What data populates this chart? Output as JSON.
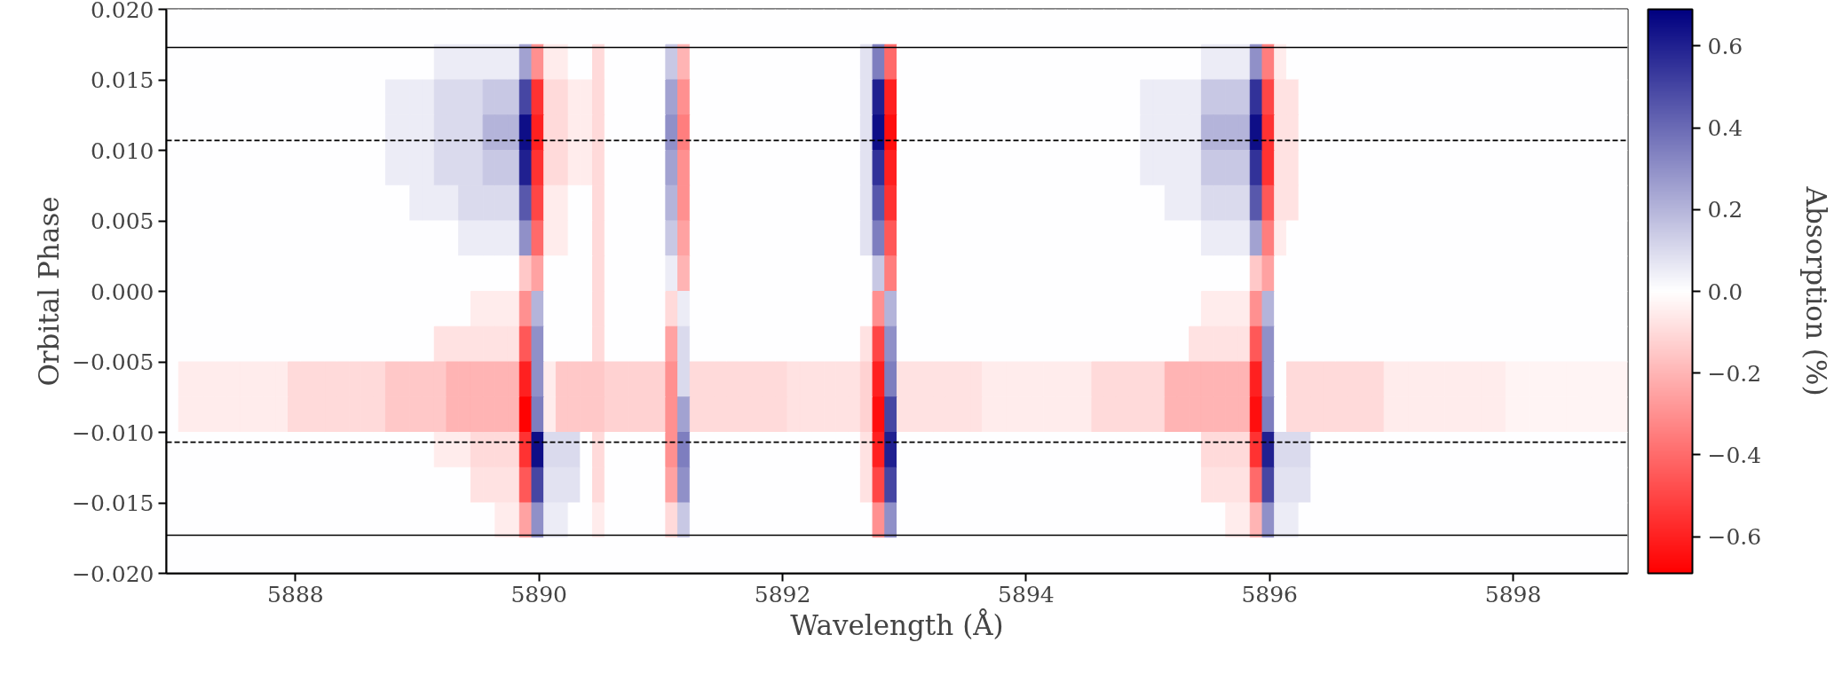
{
  "chart_data": {
    "type": "heatmap",
    "xlabel": "Wavelength (Å)",
    "ylabel": "Orbital Phase",
    "clabel": "Absorption (%)",
    "xlim": [
      5886.94,
      5898.94
    ],
    "ylim": [
      -0.02,
      0.02
    ],
    "xticks": [
      5888,
      5890,
      5892,
      5894,
      5896,
      5898
    ],
    "yticks": [
      {
        "value": -0.02,
        "label": "−0.020"
      },
      {
        "value": -0.015,
        "label": "−0.015"
      },
      {
        "value": -0.01,
        "label": "−0.010"
      },
      {
        "value": -0.005,
        "label": "−0.005"
      },
      {
        "value": 0,
        "label": "0.000"
      },
      {
        "value": 0.005,
        "label": "0.005"
      },
      {
        "value": 0.01,
        "label": "0.010"
      },
      {
        "value": 0.015,
        "label": "0.015"
      },
      {
        "value": 0.02,
        "label": "0.020"
      }
    ],
    "clim": [
      -0.69,
      0.69
    ],
    "cticks": [
      {
        "value": -0.6,
        "label": "−0.6"
      },
      {
        "value": -0.4,
        "label": "−0.4"
      },
      {
        "value": -0.2,
        "label": "−0.2"
      },
      {
        "value": 0,
        "label": "0.0"
      },
      0.2,
      0.4,
      0.6
    ],
    "colors": [
      "#ff0000",
      "#ffffff",
      "#000080"
    ],
    "ref_lines": [
      {
        "axis": "y",
        "value": 0.0173,
        "color": "#000000",
        "line_style": "solid"
      },
      {
        "axis": "y",
        "value": 0.0107,
        "color": "#000000",
        "line_style": "dashed"
      },
      {
        "axis": "y",
        "value": -0.0107,
        "color": "#000000",
        "line_style": "dashed"
      },
      {
        "axis": "y",
        "value": -0.0173,
        "color": "#000000",
        "line_style": "solid"
      }
    ],
    "cells": [
      [
        0,
        0,
        0,
        0,
        0,
        0,
        0,
        0,
        0,
        0,
        0,
        0,
        0,
        0,
        0,
        0,
        0,
        0,
        0,
        0,
        0,
        0,
        0,
        0,
        0,
        0,
        0,
        0,
        0,
        0,
        0,
        0,
        0,
        0,
        0,
        0,
        0,
        0,
        0,
        0,
        0,
        0,
        0,
        0,
        0,
        0,
        0,
        0,
        0,
        0,
        0,
        0,
        0,
        0,
        0,
        0,
        0,
        0,
        0,
        0,
        0,
        0,
        0,
        0,
        0,
        0,
        0,
        0,
        0,
        0,
        0,
        0,
        0,
        0,
        0,
        0,
        0,
        0,
        0,
        0,
        0,
        0,
        0,
        0,
        0,
        0,
        0,
        0,
        0,
        0,
        0,
        0,
        0,
        0,
        0,
        0,
        0,
        0,
        0,
        0,
        0,
        0,
        0,
        0,
        0,
        0,
        0,
        0,
        0,
        0,
        0,
        0,
        0,
        0,
        0,
        0,
        0,
        0,
        0,
        0
      ],
      [
        0,
        0,
        0,
        0,
        0,
        0,
        0,
        0,
        0,
        0,
        0,
        0,
        0,
        0,
        0,
        0,
        0,
        0,
        0,
        0,
        0,
        0,
        0.05,
        0.05,
        0.05,
        0.05,
        0.05,
        0.05,
        0.05,
        0.25,
        -0.3,
        -0.05,
        -0.05,
        0,
        0,
        -0.1,
        0,
        0,
        0,
        0,
        0,
        0.15,
        -0.2,
        0,
        0,
        0,
        0,
        0,
        0,
        0,
        0,
        0,
        0,
        0,
        0,
        0,
        0,
        0.08,
        0.35,
        -0.4,
        0,
        0,
        0,
        0,
        0,
        0,
        0,
        0,
        0,
        0,
        0,
        0,
        0,
        0,
        0,
        0,
        0,
        0,
        0,
        0,
        0,
        0,
        0,
        0,
        0,
        0.05,
        0.05,
        0.05,
        0.05,
        0.3,
        -0.35,
        -0.05,
        0,
        0,
        0,
        0,
        0,
        0,
        0,
        0,
        0,
        0,
        0,
        0,
        0,
        0,
        0,
        0,
        0,
        0,
        0,
        0,
        0,
        0,
        0,
        0,
        0,
        0,
        0,
        0
      ],
      [
        0,
        0,
        0,
        0,
        0,
        0,
        0,
        0,
        0,
        0,
        0,
        0,
        0,
        0,
        0,
        0,
        0,
        0,
        0.05,
        0.05,
        0.05,
        0.05,
        0.1,
        0.1,
        0.1,
        0.1,
        0.15,
        0.15,
        0.15,
        0.5,
        -0.55,
        -0.1,
        -0.1,
        -0.05,
        -0.05,
        -0.1,
        0,
        0,
        0,
        0,
        0,
        0.25,
        -0.3,
        0,
        0,
        0,
        0,
        0,
        0,
        0,
        0,
        0,
        0,
        0,
        0,
        0,
        0,
        0.08,
        0.6,
        -0.6,
        0,
        0,
        0,
        0,
        0,
        0,
        0,
        0,
        0,
        0,
        0,
        0,
        0,
        0,
        0,
        0,
        0,
        0,
        0,
        0,
        0.05,
        0.05,
        0.05,
        0.05,
        0.05,
        0.15,
        0.15,
        0.15,
        0.15,
        0.55,
        -0.5,
        -0.08,
        -0.08,
        0,
        0,
        0,
        0,
        0,
        0,
        0,
        0,
        0,
        0,
        0,
        0,
        0,
        0,
        0,
        0,
        0,
        0,
        0,
        0,
        0,
        0,
        0,
        0,
        0,
        0,
        0
      ],
      [
        0,
        0,
        0,
        0,
        0,
        0,
        0,
        0,
        0,
        0,
        0,
        0,
        0,
        0,
        0,
        0,
        0,
        0,
        0.05,
        0.05,
        0.05,
        0.05,
        0.1,
        0.1,
        0.1,
        0.1,
        0.2,
        0.2,
        0.2,
        0.65,
        -0.6,
        -0.1,
        -0.1,
        -0.05,
        -0.05,
        -0.1,
        0,
        0,
        0,
        0,
        0,
        0.3,
        -0.35,
        0,
        0,
        0,
        0,
        0,
        0,
        0,
        0,
        0,
        0,
        0,
        0,
        0,
        0,
        0.08,
        0.65,
        -0.65,
        0,
        0,
        0,
        0,
        0,
        0,
        0,
        0,
        0,
        0,
        0,
        0,
        0,
        0,
        0,
        0,
        0,
        0,
        0,
        0,
        0.05,
        0.05,
        0.05,
        0.05,
        0.05,
        0.2,
        0.2,
        0.2,
        0.2,
        0.65,
        -0.55,
        -0.08,
        -0.08,
        0,
        0,
        0,
        0,
        0,
        0,
        0,
        0,
        0,
        0,
        0,
        0,
        0,
        0,
        0,
        0,
        0,
        0,
        0,
        0,
        0,
        0,
        0,
        0,
        0,
        0,
        0
      ],
      [
        0,
        0,
        0,
        0,
        0,
        0,
        0,
        0,
        0,
        0,
        0,
        0,
        0,
        0,
        0,
        0,
        0,
        0,
        0.05,
        0.05,
        0.05,
        0.05,
        0.1,
        0.1,
        0.1,
        0.1,
        0.15,
        0.15,
        0.15,
        0.6,
        -0.55,
        -0.1,
        -0.1,
        -0.05,
        -0.05,
        -0.1,
        0,
        0,
        0,
        0,
        0,
        0.25,
        -0.3,
        0,
        0,
        0,
        0,
        0,
        0,
        0,
        0,
        0,
        0,
        0,
        0,
        0,
        0,
        0.08,
        0.55,
        -0.6,
        0,
        0,
        0,
        0,
        0,
        0,
        0,
        0,
        0,
        0,
        0,
        0,
        0,
        0,
        0,
        0,
        0,
        0,
        0,
        0,
        0.05,
        0.05,
        0.05,
        0.05,
        0.05,
        0.15,
        0.15,
        0.15,
        0.15,
        0.55,
        -0.55,
        -0.08,
        -0.08,
        0,
        0,
        0,
        0,
        0,
        0,
        0,
        0,
        0,
        0,
        0,
        0,
        0,
        0,
        0,
        0,
        0,
        0,
        0,
        0,
        0,
        0,
        0,
        0,
        0,
        0,
        0
      ],
      [
        0,
        0,
        0,
        0,
        0,
        0,
        0,
        0,
        0,
        0,
        0,
        0,
        0,
        0,
        0,
        0,
        0,
        0,
        0,
        0,
        0.05,
        0.05,
        0.05,
        0.05,
        0.1,
        0.1,
        0.1,
        0.1,
        0.1,
        0.45,
        -0.5,
        -0.05,
        -0.05,
        0,
        0,
        -0.1,
        0,
        0,
        0,
        0,
        0,
        0.2,
        -0.3,
        0,
        0,
        0,
        0,
        0,
        0,
        0,
        0,
        0,
        0,
        0,
        0,
        0,
        0,
        0.08,
        0.45,
        -0.55,
        0,
        0,
        0,
        0,
        0,
        0,
        0,
        0,
        0,
        0,
        0,
        0,
        0,
        0,
        0,
        0,
        0,
        0,
        0,
        0,
        0,
        0,
        0.05,
        0.05,
        0.05,
        0.1,
        0.1,
        0.1,
        0.1,
        0.45,
        -0.45,
        -0.08,
        -0.08,
        0,
        0,
        0,
        0,
        0,
        0,
        0,
        0,
        0,
        0,
        0,
        0,
        0,
        0,
        0,
        0,
        0,
        0,
        0,
        0,
        0,
        0,
        0,
        0,
        0,
        0,
        0
      ],
      [
        0,
        0,
        0,
        0,
        0,
        0,
        0,
        0,
        0,
        0,
        0,
        0,
        0,
        0,
        0,
        0,
        0,
        0,
        0,
        0,
        0,
        0,
        0,
        0,
        0.05,
        0.05,
        0.05,
        0.05,
        0.05,
        0.3,
        -0.4,
        -0.05,
        -0.05,
        0,
        0,
        -0.1,
        0,
        0,
        0,
        0,
        0,
        0.15,
        -0.25,
        0,
        0,
        0,
        0,
        0,
        0,
        0,
        0,
        0,
        0,
        0,
        0,
        0,
        0,
        0.08,
        0.35,
        -0.45,
        0,
        0,
        0,
        0,
        0,
        0,
        0,
        0,
        0,
        0,
        0,
        0,
        0,
        0,
        0,
        0,
        0,
        0,
        0,
        0,
        0,
        0,
        0,
        0,
        0,
        0.05,
        0.05,
        0.05,
        0.05,
        0.25,
        -0.35,
        -0.05,
        0,
        0,
        0,
        0,
        0,
        0,
        0,
        0,
        0,
        0,
        0,
        0,
        0,
        0,
        0,
        0,
        0,
        0,
        0,
        0,
        0,
        0,
        0,
        0,
        0,
        0,
        0,
        0
      ],
      [
        0,
        0,
        0,
        0,
        0,
        0,
        0,
        0,
        0,
        0,
        0,
        0,
        0,
        0,
        0,
        0,
        0,
        0,
        0,
        0,
        0,
        0,
        0,
        0,
        0,
        0,
        0,
        0,
        0,
        -0.15,
        -0.25,
        0,
        0,
        0,
        0,
        -0.1,
        0,
        0,
        0,
        0,
        0,
        0.05,
        -0.2,
        0,
        0,
        0,
        0,
        0,
        0,
        0,
        0,
        0,
        0,
        0,
        0,
        0,
        0,
        0,
        0.15,
        -0.35,
        0,
        0,
        0,
        0,
        0,
        0,
        0,
        0,
        0,
        0,
        0,
        0,
        0,
        0,
        0,
        0,
        0,
        0,
        0,
        0,
        0,
        0,
        0,
        0,
        0,
        0,
        0,
        0,
        0,
        -0.15,
        -0.25,
        0,
        0,
        0,
        0,
        0,
        0,
        0,
        0,
        0,
        0,
        0,
        0,
        0,
        0,
        0,
        0,
        0,
        0,
        0,
        0,
        0,
        0,
        0,
        0,
        0,
        0,
        0,
        0,
        0
      ],
      [
        0,
        0,
        0,
        0,
        0,
        0,
        0,
        0,
        0,
        0,
        0,
        0,
        0,
        0,
        0,
        0,
        0,
        0,
        0,
        0,
        0,
        0,
        0,
        0,
        0,
        -0.05,
        -0.05,
        -0.05,
        -0.05,
        -0.3,
        0.2,
        0,
        0,
        0,
        0,
        -0.1,
        0,
        0,
        0,
        0,
        0,
        -0.1,
        0.05,
        0,
        0,
        0,
        0,
        0,
        0,
        0,
        0,
        0,
        0,
        0,
        0,
        0,
        0,
        0,
        -0.3,
        0.2,
        0,
        0,
        0,
        0,
        0,
        0,
        0,
        0,
        0,
        0,
        0,
        0,
        0,
        0,
        0,
        0,
        0,
        0,
        0,
        0,
        0,
        0,
        0,
        0,
        0,
        -0.05,
        -0.05,
        -0.05,
        -0.05,
        -0.3,
        0.2,
        0,
        0,
        0,
        0,
        0,
        0,
        0,
        0,
        0,
        0,
        0,
        0,
        0,
        0,
        0,
        0,
        0,
        0,
        0,
        0,
        0,
        0,
        0,
        0,
        0,
        0,
        0,
        0,
        0
      ],
      [
        0,
        0,
        0,
        0,
        0,
        0,
        0,
        0,
        0,
        0,
        0,
        0,
        0,
        0,
        0,
        0,
        0,
        0,
        0,
        0,
        0,
        0,
        -0.08,
        -0.08,
        -0.08,
        -0.08,
        -0.08,
        -0.08,
        -0.08,
        -0.45,
        0.3,
        0,
        0,
        0,
        0,
        -0.1,
        0,
        0,
        0,
        0,
        0,
        -0.25,
        0.1,
        0,
        0,
        0,
        0,
        0,
        0,
        0,
        0,
        0,
        0,
        0,
        0,
        0,
        0,
        -0.08,
        -0.5,
        0.3,
        0,
        0,
        0,
        0,
        0,
        0,
        0,
        0,
        0,
        0,
        0,
        0,
        0,
        0,
        0,
        0,
        0,
        0,
        0,
        0,
        0,
        0,
        0,
        0,
        -0.08,
        -0.08,
        -0.08,
        -0.08,
        -0.08,
        -0.45,
        0.3,
        0,
        0,
        0,
        0,
        0,
        0,
        0,
        0,
        0,
        0,
        0,
        0,
        0,
        0,
        0,
        0,
        0,
        0,
        0,
        0,
        0,
        0,
        0,
        0,
        0,
        0,
        0,
        0,
        0
      ],
      [
        0,
        -0.05,
        -0.05,
        -0.05,
        -0.05,
        -0.05,
        -0.05,
        -0.05,
        -0.05,
        -0.05,
        -0.1,
        -0.1,
        -0.1,
        -0.1,
        -0.1,
        -0.1,
        -0.1,
        -0.1,
        -0.15,
        -0.15,
        -0.15,
        -0.15,
        -0.15,
        -0.2,
        -0.2,
        -0.2,
        -0.2,
        -0.2,
        -0.2,
        -0.6,
        0.3,
        -0.05,
        -0.15,
        -0.15,
        -0.15,
        -0.15,
        -0.12,
        -0.12,
        -0.12,
        -0.12,
        -0.12,
        -0.3,
        0.1,
        -0.1,
        -0.1,
        -0.1,
        -0.1,
        -0.1,
        -0.1,
        -0.1,
        -0.1,
        -0.08,
        -0.08,
        -0.08,
        -0.08,
        -0.08,
        -0.08,
        -0.12,
        -0.6,
        0.35,
        -0.08,
        -0.08,
        -0.08,
        -0.08,
        -0.08,
        -0.08,
        -0.08,
        -0.05,
        -0.05,
        -0.05,
        -0.05,
        -0.05,
        -0.05,
        -0.05,
        -0.05,
        -0.05,
        -0.1,
        -0.1,
        -0.1,
        -0.1,
        -0.1,
        -0.1,
        -0.2,
        -0.2,
        -0.2,
        -0.2,
        -0.2,
        -0.2,
        -0.2,
        -0.6,
        0.3,
        0,
        -0.1,
        -0.1,
        -0.1,
        -0.1,
        -0.1,
        -0.1,
        -0.1,
        -0.1,
        -0.05,
        -0.05,
        -0.05,
        -0.05,
        -0.05,
        -0.05,
        -0.05,
        -0.05,
        -0.05,
        -0.05,
        -0.03,
        -0.03,
        -0.03,
        -0.03,
        -0.03,
        -0.03,
        -0.03,
        -0.03,
        -0.03,
        -0.03
      ],
      [
        0,
        -0.05,
        -0.05,
        -0.05,
        -0.05,
        -0.05,
        -0.05,
        -0.05,
        -0.05,
        -0.05,
        -0.1,
        -0.1,
        -0.1,
        -0.1,
        -0.1,
        -0.1,
        -0.1,
        -0.1,
        -0.15,
        -0.15,
        -0.15,
        -0.15,
        -0.15,
        -0.2,
        -0.2,
        -0.2,
        -0.2,
        -0.2,
        -0.2,
        -0.68,
        0.35,
        -0.05,
        -0.15,
        -0.15,
        -0.15,
        -0.15,
        -0.12,
        -0.12,
        -0.12,
        -0.12,
        -0.12,
        -0.3,
        0.25,
        -0.1,
        -0.1,
        -0.1,
        -0.1,
        -0.1,
        -0.1,
        -0.1,
        -0.1,
        -0.08,
        -0.08,
        -0.08,
        -0.08,
        -0.08,
        -0.08,
        -0.12,
        -0.65,
        0.5,
        -0.08,
        -0.08,
        -0.08,
        -0.08,
        -0.08,
        -0.08,
        -0.08,
        -0.05,
        -0.05,
        -0.05,
        -0.05,
        -0.05,
        -0.05,
        -0.05,
        -0.05,
        -0.05,
        -0.1,
        -0.1,
        -0.1,
        -0.1,
        -0.1,
        -0.1,
        -0.2,
        -0.2,
        -0.2,
        -0.2,
        -0.2,
        -0.2,
        -0.2,
        -0.65,
        0.35,
        0,
        -0.1,
        -0.1,
        -0.1,
        -0.1,
        -0.1,
        -0.1,
        -0.1,
        -0.1,
        -0.05,
        -0.05,
        -0.05,
        -0.05,
        -0.05,
        -0.05,
        -0.05,
        -0.05,
        -0.05,
        -0.05,
        -0.03,
        -0.03,
        -0.03,
        -0.03,
        -0.03,
        -0.03,
        -0.03,
        -0.03,
        -0.03,
        -0.03
      ],
      [
        0,
        0,
        0,
        0,
        0,
        0,
        0,
        0,
        0,
        0,
        0,
        0,
        0,
        0,
        0,
        0,
        0,
        0,
        0,
        0,
        0,
        0,
        -0.05,
        -0.05,
        -0.05,
        -0.1,
        -0.1,
        -0.1,
        -0.1,
        -0.55,
        0.65,
        0.1,
        0.1,
        0.1,
        0,
        -0.1,
        0,
        0,
        0,
        0,
        0,
        -0.3,
        0.35,
        0,
        0,
        0,
        0,
        0,
        0,
        0,
        0,
        0,
        0,
        0,
        0,
        0,
        0,
        -0.08,
        -0.6,
        0.6,
        0,
        0,
        0,
        0,
        0,
        0,
        0,
        0,
        0,
        0,
        0,
        0,
        0,
        0,
        0,
        0,
        0,
        0,
        0,
        0,
        0,
        0,
        0,
        0,
        0,
        -0.1,
        -0.1,
        -0.1,
        -0.1,
        -0.55,
        0.6,
        0.1,
        0.1,
        0.1,
        0,
        0,
        0,
        0,
        0,
        0,
        0,
        0,
        0,
        0,
        0,
        0,
        0,
        0,
        0,
        0,
        0,
        0,
        0,
        0,
        0,
        0,
        0,
        0,
        0,
        0
      ],
      [
        0,
        0,
        0,
        0,
        0,
        0,
        0,
        0,
        0,
        0,
        0,
        0,
        0,
        0,
        0,
        0,
        0,
        0,
        0,
        0,
        0,
        0,
        0,
        0,
        0,
        -0.08,
        -0.08,
        -0.08,
        -0.08,
        -0.45,
        0.5,
        0.08,
        0.08,
        0.08,
        0,
        -0.1,
        0,
        0,
        0,
        0,
        0,
        -0.25,
        0.3,
        0,
        0,
        0,
        0,
        0,
        0,
        0,
        0,
        0,
        0,
        0,
        0,
        0,
        0,
        -0.08,
        -0.5,
        0.5,
        0,
        0,
        0,
        0,
        0,
        0,
        0,
        0,
        0,
        0,
        0,
        0,
        0,
        0,
        0,
        0,
        0,
        0,
        0,
        0,
        0,
        0,
        0,
        0,
        0,
        -0.08,
        -0.08,
        -0.08,
        -0.08,
        -0.4,
        0.5,
        0.08,
        0.08,
        0.08,
        0,
        0,
        0,
        0,
        0,
        0,
        0,
        0,
        0,
        0,
        0,
        0,
        0,
        0,
        0,
        0,
        0,
        0,
        0,
        0,
        0,
        0,
        0,
        0,
        0,
        0
      ],
      [
        0,
        0,
        0,
        0,
        0,
        0,
        0,
        0,
        0,
        0,
        0,
        0,
        0,
        0,
        0,
        0,
        0,
        0,
        0,
        0,
        0,
        0,
        0,
        0,
        0,
        0,
        0,
        -0.05,
        -0.05,
        -0.25,
        0.3,
        0.05,
        0.05,
        0,
        0,
        -0.05,
        0,
        0,
        0,
        0,
        0,
        -0.1,
        0.15,
        0,
        0,
        0,
        0,
        0,
        0,
        0,
        0,
        0,
        0,
        0,
        0,
        0,
        0,
        0,
        -0.3,
        0.3,
        0,
        0,
        0,
        0,
        0,
        0,
        0,
        0,
        0,
        0,
        0,
        0,
        0,
        0,
        0,
        0,
        0,
        0,
        0,
        0,
        0,
        0,
        0,
        0,
        0,
        0,
        0,
        -0.05,
        -0.05,
        -0.2,
        0.3,
        0.05,
        0.05,
        0,
        0,
        0,
        0,
        0,
        0,
        0,
        0,
        0,
        0,
        0,
        0,
        0,
        0,
        0,
        0,
        0,
        0,
        0,
        0,
        0,
        0,
        0,
        0,
        0,
        0,
        0
      ],
      [
        0,
        0,
        0,
        0,
        0,
        0,
        0,
        0,
        0,
        0,
        0,
        0,
        0,
        0,
        0,
        0,
        0,
        0,
        0,
        0,
        0,
        0,
        0,
        0,
        0,
        0,
        0,
        0,
        0,
        0,
        0,
        0,
        0,
        0,
        0,
        0,
        0,
        0,
        0,
        0,
        0,
        0,
        0,
        0,
        0,
        0,
        0,
        0,
        0,
        0,
        0,
        0,
        0,
        0,
        0,
        0,
        0,
        0,
        0,
        0,
        0,
        0,
        0,
        0,
        0,
        0,
        0,
        0,
        0,
        0,
        0,
        0,
        0,
        0,
        0,
        0,
        0,
        0,
        0,
        0,
        0,
        0,
        0,
        0,
        0,
        0,
        0,
        0,
        0,
        0,
        0,
        0,
        0,
        0,
        0,
        0,
        0,
        0,
        0,
        0,
        0,
        0,
        0,
        0,
        0,
        0,
        0,
        0,
        0,
        0,
        0,
        0,
        0,
        0,
        0,
        0,
        0,
        0,
        0,
        0
      ]
    ]
  }
}
